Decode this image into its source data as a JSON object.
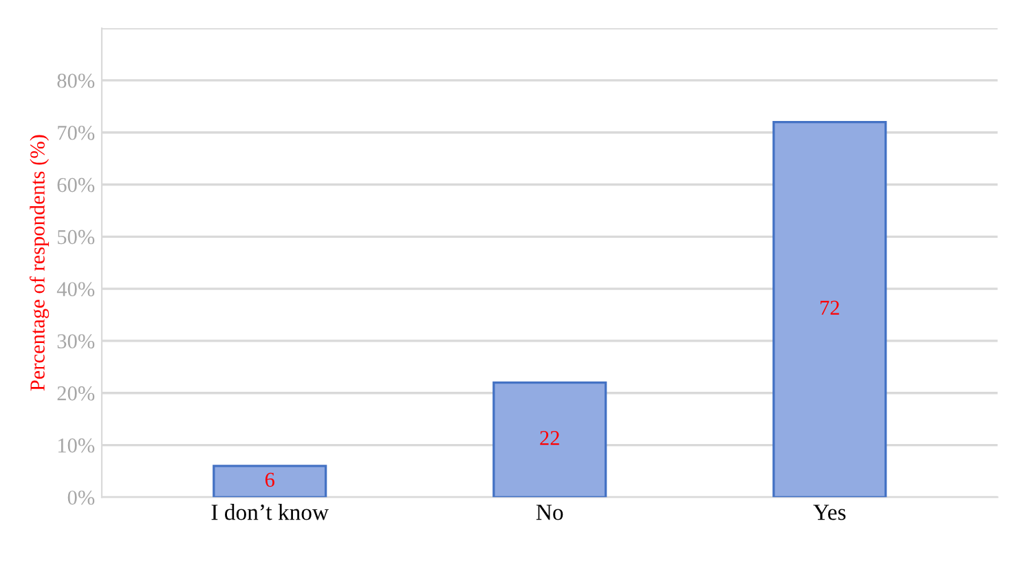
{
  "chart_data": {
    "type": "bar",
    "ylabel": "Percentage of respondents (%)",
    "categories": [
      "I don’t know",
      "No",
      "Yes"
    ],
    "values": [
      6,
      22,
      72
    ],
    "color": "#92abe2",
    "ylim": [
      0,
      90
    ],
    "yticks": [
      {
        "value": 0,
        "label": "0%"
      },
      {
        "value": 10,
        "label": "10%"
      },
      {
        "value": 20,
        "label": "20%"
      },
      {
        "value": 30,
        "label": "30%"
      },
      {
        "value": 40,
        "label": "40%"
      },
      {
        "value": 50,
        "label": "50%"
      },
      {
        "value": 60,
        "label": "60%"
      },
      {
        "value": 70,
        "label": "70%"
      },
      {
        "value": 80,
        "label": "80%"
      },
      {
        "value": 90,
        "label": null
      }
    ],
    "grid": "y",
    "data_labels": true
  }
}
